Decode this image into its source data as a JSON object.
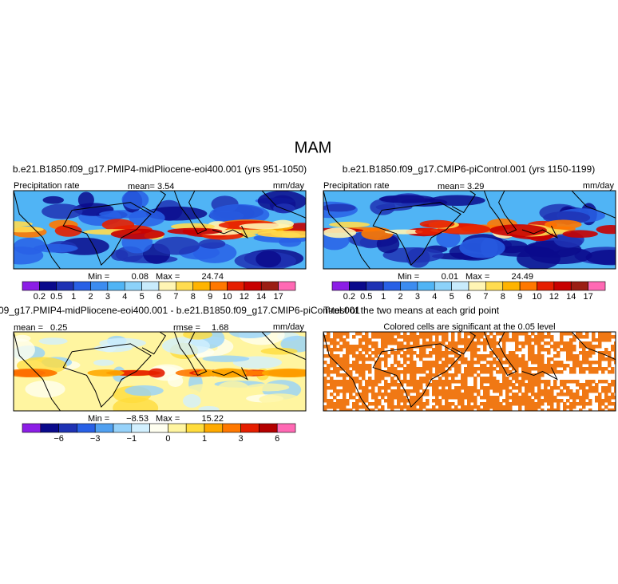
{
  "title": "MAM",
  "panels": [
    {
      "title": "b.e21.B1850.f09_g17.PMIP4-midPliocene-eoi400.001 (yrs 951-1050)",
      "variable": "Precipitation rate",
      "mean_label": "mean=",
      "mean": "3.54",
      "units": "mm/day",
      "min_label": "Min =",
      "min": "0.08",
      "max_label": "Max =",
      "max": "24.74",
      "colorbar": {
        "colors": [
          "#8c1ee6",
          "#0a0a8c",
          "#1e32b4",
          "#2860e6",
          "#3c8cf0",
          "#50b4f5",
          "#8cd2fa",
          "#c8ebfc",
          "#fff5b4",
          "#ffdc50",
          "#ffb400",
          "#ff7800",
          "#e61e00",
          "#c80000",
          "#9b1e14",
          "#ff69b4"
        ],
        "labels": [
          "0.2",
          "0.5",
          "1",
          "2",
          "3",
          "4",
          "5",
          "6",
          "7",
          "8",
          "9",
          "10",
          "12",
          "14",
          "17"
        ]
      }
    },
    {
      "title": "b.e21.B1850.f09_g17.CMIP6-piControl.001 (yrs 1150-1199)",
      "variable": "Precipitation rate",
      "mean_label": "mean=",
      "mean": "3.29",
      "units": "mm/day",
      "min_label": "Min =",
      "min": "0.01",
      "max_label": "Max =",
      "max": "24.49",
      "colorbar": {
        "colors": [
          "#8c1ee6",
          "#0a0a8c",
          "#1e32b4",
          "#2860e6",
          "#3c8cf0",
          "#50b4f5",
          "#8cd2fa",
          "#c8ebfc",
          "#fff5b4",
          "#ffdc50",
          "#ffb400",
          "#ff7800",
          "#e61e00",
          "#c80000",
          "#9b1e14",
          "#ff69b4"
        ],
        "labels": [
          "0.2",
          "0.5",
          "1",
          "2",
          "3",
          "4",
          "5",
          "6",
          "7",
          "8",
          "9",
          "10",
          "12",
          "14",
          "17"
        ]
      }
    },
    {
      "title": "09_g17.PMIP4-midPliocene-eoi400.001 - b.e21.B1850.f09_g17.CMIP6-piControl.001",
      "mean_label": "mean =",
      "mean": "0.25",
      "rmse_label": "rmse =",
      "rmse": "1.68",
      "units": "mm/day",
      "min_label": "Min =",
      "min": "−8.53",
      "max_label": "Max =",
      "max": "15.22",
      "colorbar": {
        "colors": [
          "#8c1ee6",
          "#0a0a8c",
          "#1e32b4",
          "#2860e6",
          "#50a0f0",
          "#96d2fa",
          "#d2f0ff",
          "#fffff0",
          "#fff5a0",
          "#ffdc3c",
          "#ffaa00",
          "#ff7800",
          "#e61e00",
          "#b40000",
          "#ff69b4"
        ],
        "labels": [
          null,
          "−6",
          null,
          "−3",
          null,
          "−1",
          null,
          "0",
          null,
          "1",
          null,
          "3",
          null,
          "6"
        ]
      }
    },
    {
      "title": "T-test of the two means at each grid point",
      "subtitle": "Colored cells are significant at the 0.05 level",
      "color": "#f07814"
    }
  ]
}
